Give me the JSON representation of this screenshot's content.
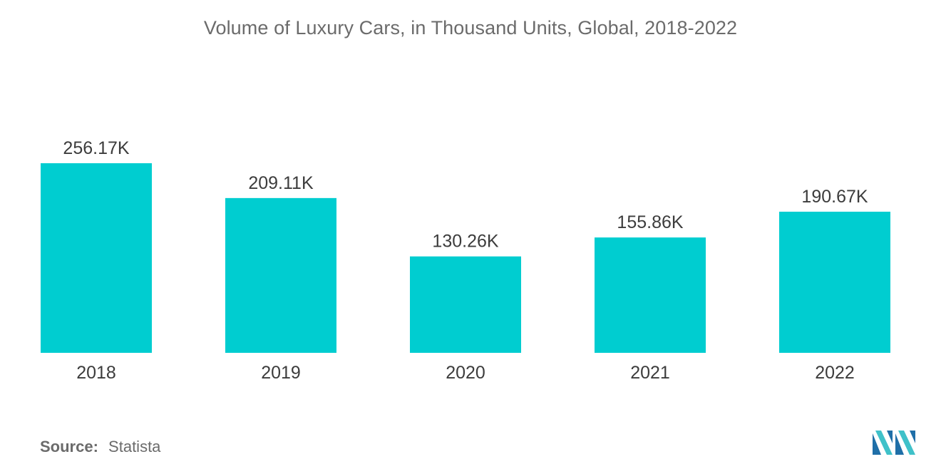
{
  "chart_data": {
    "type": "bar",
    "title": "Volume of Luxury Cars, in Thousand Units, Global, 2018-2022",
    "categories": [
      "2018",
      "2019",
      "2020",
      "2021",
      "2022"
    ],
    "values": [
      256.17,
      209.11,
      130.26,
      155.86,
      190.67
    ],
    "value_labels": [
      "256.17K",
      "209.11K",
      "130.26K",
      "155.86K",
      "190.67K"
    ],
    "xlabel": "",
    "ylabel": "",
    "ylim": [
      0,
      256.17
    ],
    "grid": false,
    "bar_color": "#00CDD0"
  },
  "source": {
    "label": "Source:",
    "value": "Statista"
  },
  "logo": {
    "icon": "mordor-intelligence-logo-icon",
    "colors": [
      "#1f6fa8",
      "#3fc1c9"
    ]
  }
}
